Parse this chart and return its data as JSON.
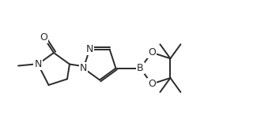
{
  "background_color": "#ffffff",
  "line_color": "#2a2a2a",
  "line_width": 1.4,
  "font_size": 8.5,
  "figsize": [
    3.44,
    1.6
  ],
  "dpi": 100,
  "xlim": [
    0.0,
    3.44
  ],
  "ylim": [
    0.0,
    1.6
  ]
}
